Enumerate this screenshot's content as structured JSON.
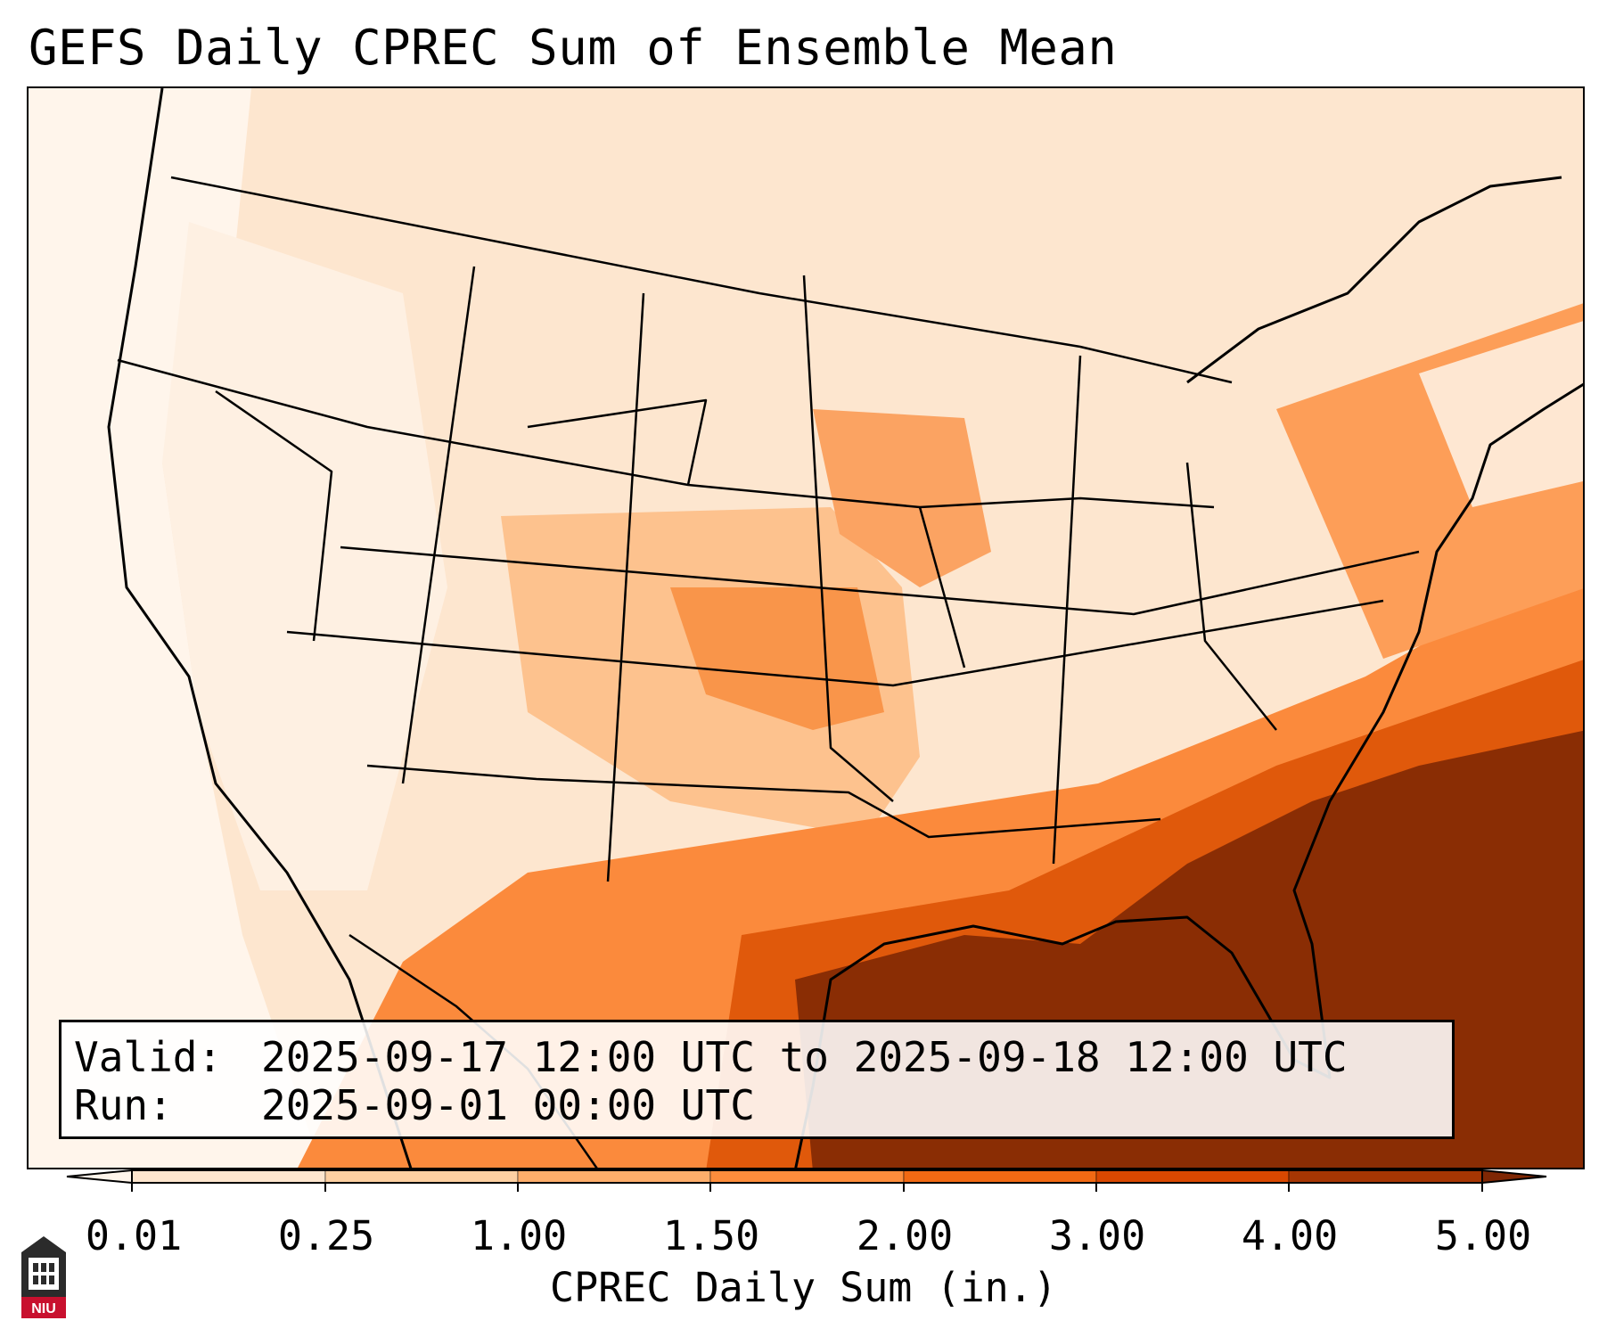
{
  "title": "GEFS Daily CPREC Sum of Ensemble Mean",
  "info": {
    "valid_label": "Valid:",
    "valid_value": "2025-09-17 12:00 UTC to 2025-09-18 12:00 UTC",
    "run_label": "Run:",
    "run_value": "2025-09-01 00:00 UTC"
  },
  "colorbar": {
    "label": "CPREC Daily Sum (in.)",
    "ticks": [
      "0.01",
      "0.25",
      "1.00",
      "1.50",
      "2.00",
      "3.00",
      "4.00",
      "5.00"
    ],
    "colors": [
      "#fff5eb",
      "#fee6ce",
      "#fdd0a2",
      "#fdae6b",
      "#fd8d3c",
      "#f16913",
      "#d94801",
      "#a63603",
      "#7f2704"
    ]
  },
  "logo": {
    "text": "NIU"
  }
}
